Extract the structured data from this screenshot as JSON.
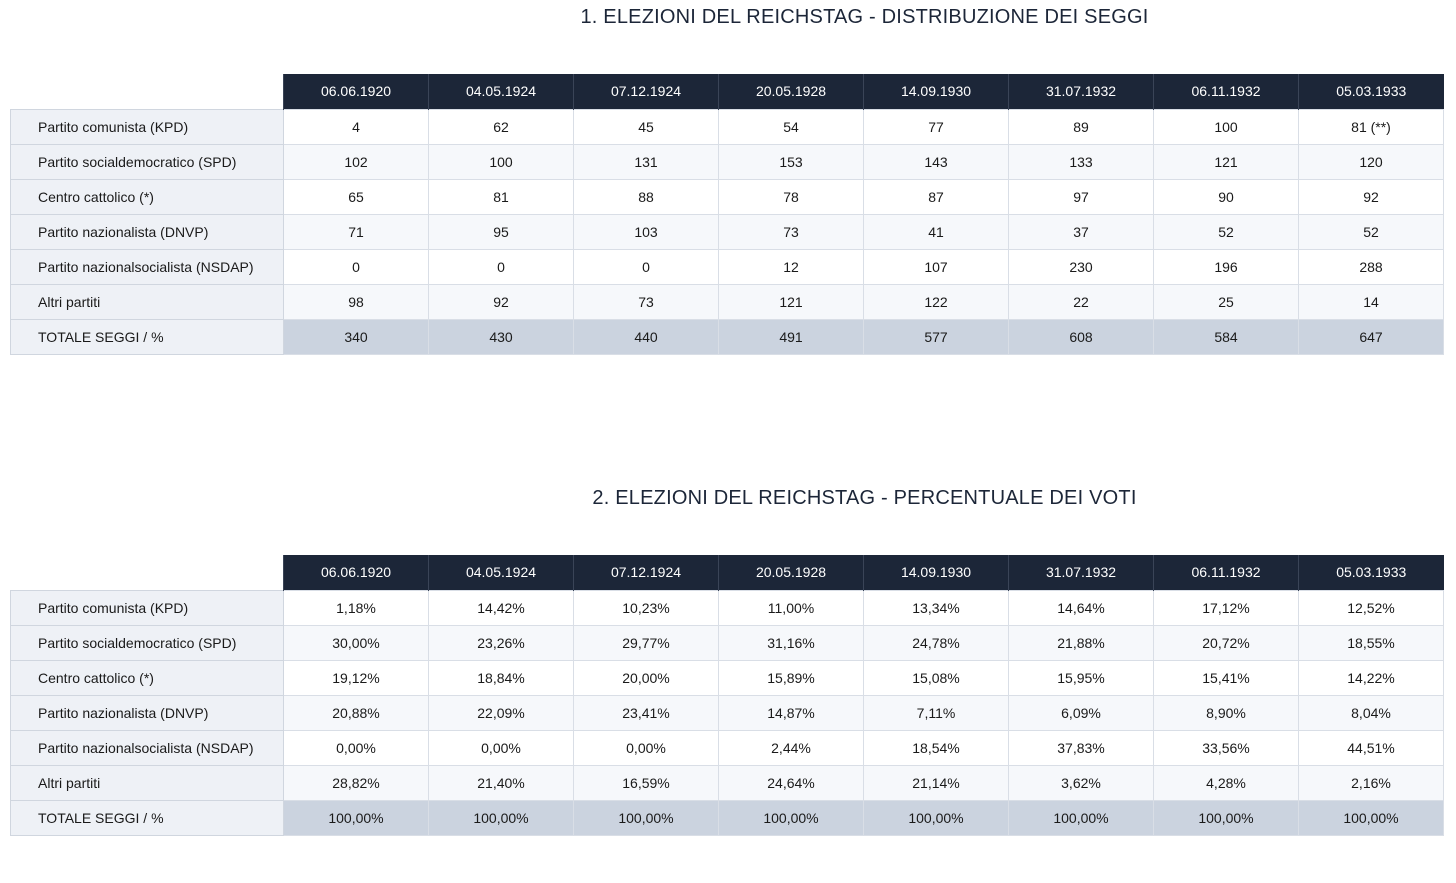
{
  "table1": {
    "title": "1. ELEZIONI DEL REICHSTAG - DISTRIBUZIONE DEI SEGGI",
    "dates": [
      "06.06.1920",
      "04.05.1924",
      "07.12.1924",
      "20.05.1928",
      "14.09.1930",
      "31.07.1932",
      "06.11.1932",
      "05.03.1933"
    ],
    "rows": [
      {
        "label": "Partito comunista (KPD)",
        "values": [
          "4",
          "62",
          "45",
          "54",
          "77",
          "89",
          "100",
          "81 (**)"
        ]
      },
      {
        "label": "Partito socialdemocratico (SPD)",
        "values": [
          "102",
          "100",
          "131",
          "153",
          "143",
          "133",
          "121",
          "120"
        ]
      },
      {
        "label": "Centro cattolico (*)",
        "values": [
          "65",
          "81",
          "88",
          "78",
          "87",
          "97",
          "90",
          "92"
        ]
      },
      {
        "label": "Partito nazionalista (DNVP)",
        "values": [
          "71",
          "95",
          "103",
          "73",
          "41",
          "37",
          "52",
          "52"
        ]
      },
      {
        "label": "Partito nazionalsocialista (NSDAP)",
        "values": [
          "0",
          "0",
          "0",
          "12",
          "107",
          "230",
          "196",
          "288"
        ]
      },
      {
        "label": "Altri partiti",
        "values": [
          "98",
          "92",
          "73",
          "121",
          "122",
          "22",
          "25",
          "14"
        ]
      },
      {
        "label": "TOTALE SEGGI / %",
        "values": [
          "340",
          "430",
          "440",
          "491",
          "577",
          "608",
          "584",
          "647"
        ]
      }
    ]
  },
  "table2": {
    "title": "2. ELEZIONI DEL REICHSTAG - PERCENTUALE DEI VOTI",
    "dates": [
      "06.06.1920",
      "04.05.1924",
      "07.12.1924",
      "20.05.1928",
      "14.09.1930",
      "31.07.1932",
      "06.11.1932",
      "05.03.1933"
    ],
    "rows": [
      {
        "label": "Partito comunista (KPD)",
        "values": [
          "1,18%",
          "14,42%",
          "10,23%",
          "11,00%",
          "13,34%",
          "14,64%",
          "17,12%",
          "12,52%"
        ]
      },
      {
        "label": "Partito socialdemocratico (SPD)",
        "values": [
          "30,00%",
          "23,26%",
          "29,77%",
          "31,16%",
          "24,78%",
          "21,88%",
          "20,72%",
          "18,55%"
        ]
      },
      {
        "label": "Centro cattolico (*)",
        "values": [
          "19,12%",
          "18,84%",
          "20,00%",
          "15,89%",
          "15,08%",
          "15,95%",
          "15,41%",
          "14,22%"
        ]
      },
      {
        "label": "Partito nazionalista (DNVP)",
        "values": [
          "20,88%",
          "22,09%",
          "23,41%",
          "14,87%",
          "7,11%",
          "6,09%",
          "8,90%",
          "8,04%"
        ]
      },
      {
        "label": "Partito nazionalsocialista (NSDAP)",
        "values": [
          "0,00%",
          "0,00%",
          "0,00%",
          "2,44%",
          "18,54%",
          "37,83%",
          "33,56%",
          "44,51%"
        ]
      },
      {
        "label": "Altri partiti",
        "values": [
          "28,82%",
          "21,40%",
          "16,59%",
          "24,64%",
          "21,14%",
          "3,62%",
          "4,28%",
          "2,16%"
        ]
      },
      {
        "label": "TOTALE SEGGI / %",
        "values": [
          "100,00%",
          "100,00%",
          "100,00%",
          "100,00%",
          "100,00%",
          "100,00%",
          "100,00%",
          "100,00%"
        ]
      }
    ]
  }
}
